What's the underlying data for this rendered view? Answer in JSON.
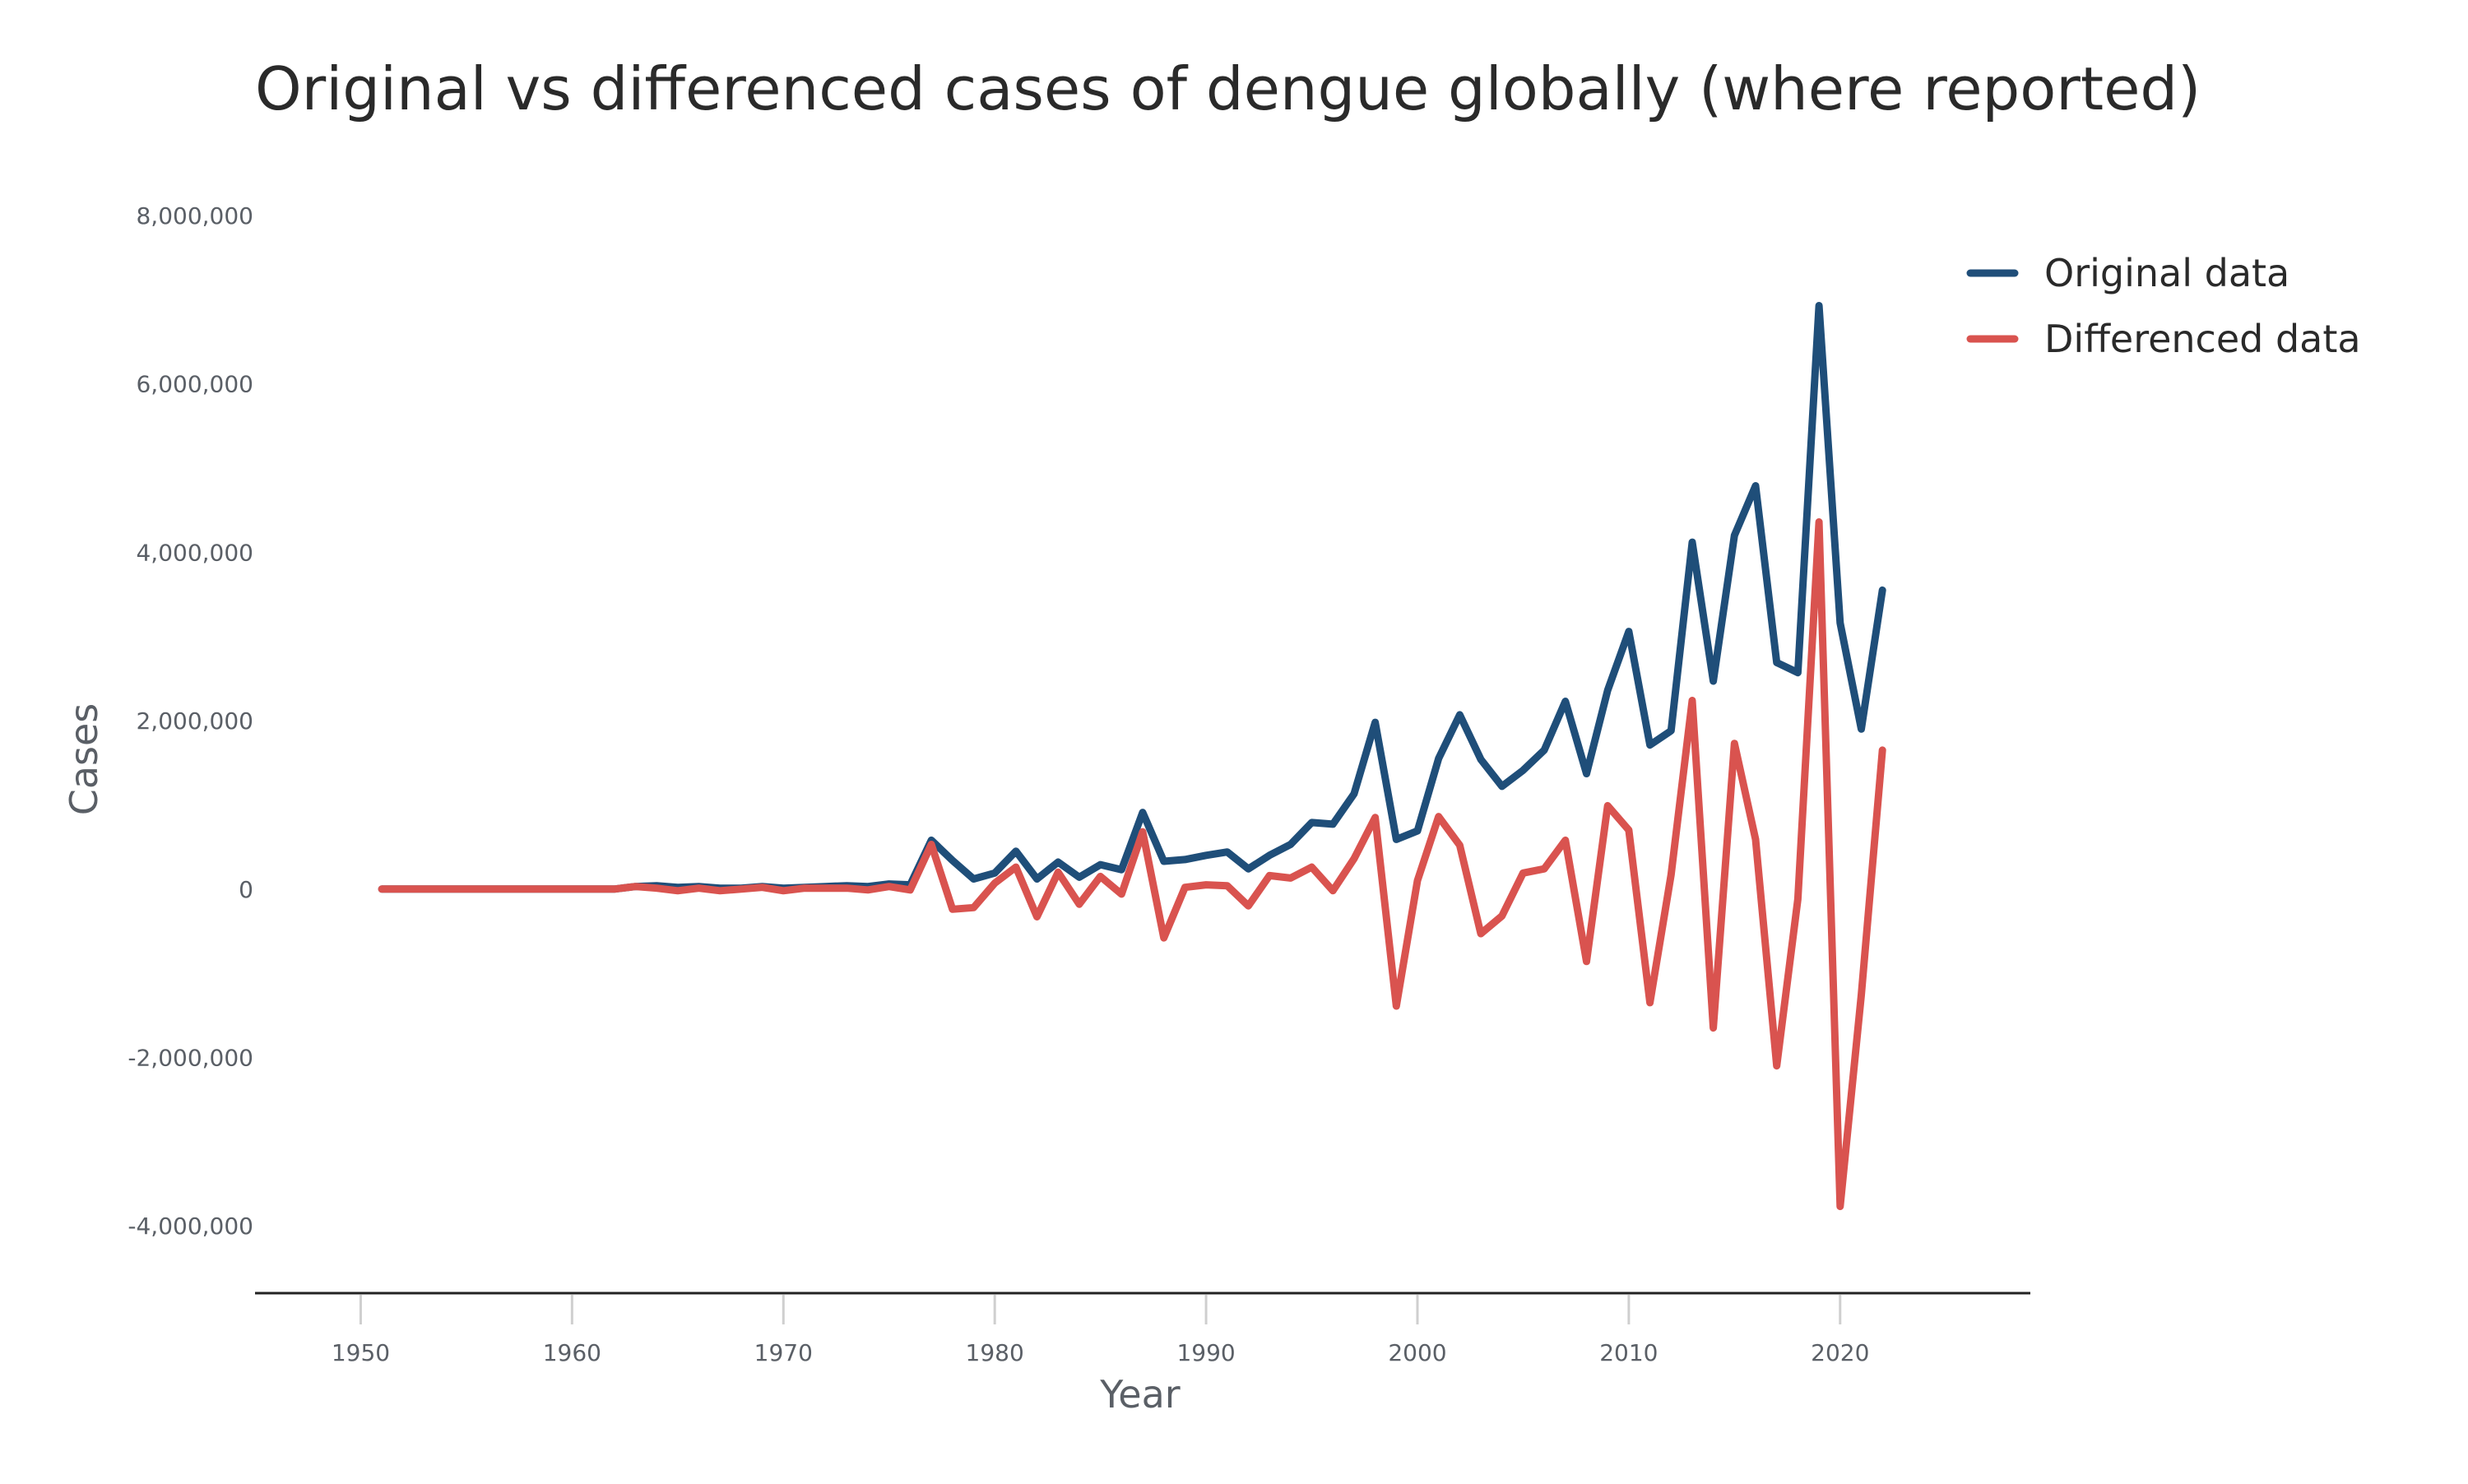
{
  "chart_data": {
    "type": "line",
    "title": "Original vs differenced cases of dengue globally (where reported)",
    "xlabel": "Year",
    "ylabel": "Cases",
    "xlim": [
      1945,
      2029
    ],
    "ylim": [
      -4800000,
      8000000
    ],
    "x_ticks": [
      1950,
      1960,
      1970,
      1980,
      1990,
      2000,
      2010,
      2020
    ],
    "x_tick_labels": [
      "1950",
      "1960",
      "1970",
      "1980",
      "1990",
      "2000",
      "2010",
      "2020"
    ],
    "y_ticks": [
      8000000,
      6000000,
      4000000,
      2000000,
      0,
      -2000000,
      -4000000
    ],
    "y_tick_labels": [
      "8,000,000",
      "6,000,000",
      "4,000,000",
      "2,000,000",
      "0",
      "-2,000,000",
      "-4,000,000"
    ],
    "grid": false,
    "legend_position": "top-right",
    "x": [
      1951,
      1952,
      1953,
      1954,
      1955,
      1956,
      1957,
      1958,
      1959,
      1960,
      1961,
      1962,
      1963,
      1964,
      1965,
      1966,
      1967,
      1968,
      1969,
      1970,
      1971,
      1972,
      1973,
      1974,
      1975,
      1976,
      1977,
      1978,
      1979,
      1980,
      1981,
      1982,
      1983,
      1984,
      1985,
      1986,
      1987,
      1988,
      1989,
      1990,
      1991,
      1992,
      1993,
      1994,
      1995,
      1996,
      1997,
      1998,
      1999,
      2000,
      2001,
      2002,
      2003,
      2004,
      2005,
      2006,
      2007,
      2008,
      2009,
      2010,
      2011,
      2012,
      2013,
      2014,
      2015,
      2016,
      2017,
      2018,
      2019,
      2020,
      2021,
      2022
    ],
    "series": [
      {
        "name": "Original data",
        "color": "#1f4e79",
        "values": [
          0,
          0,
          0,
          0,
          0,
          0,
          0,
          0,
          0,
          0,
          0,
          0,
          30000,
          40000,
          20000,
          30000,
          10000,
          10000,
          30000,
          10000,
          20000,
          30000,
          40000,
          30000,
          60000,
          50000,
          580000,
          340000,
          120000,
          190000,
          450000,
          120000,
          320000,
          140000,
          290000,
          230000,
          910000,
          330000,
          350000,
          400000,
          440000,
          240000,
          400000,
          530000,
          790000,
          770000,
          1130000,
          1980000,
          590000,
          690000,
          1550000,
          2070000,
          1540000,
          1220000,
          1410000,
          1650000,
          2230000,
          1370000,
          2360000,
          3060000,
          1710000,
          1880000,
          4120000,
          2470000,
          4200000,
          4790000,
          2690000,
          2570000,
          6930000,
          3160000,
          1900000,
          3550000
        ]
      },
      {
        "name": "Differenced data",
        "color": "#d9534f",
        "values": [
          0,
          0,
          0,
          0,
          0,
          0,
          0,
          0,
          0,
          0,
          0,
          0,
          30000,
          10000,
          -20000,
          10000,
          -20000,
          0,
          20000,
          -20000,
          10000,
          10000,
          10000,
          -10000,
          30000,
          -10000,
          530000,
          -240000,
          -220000,
          70000,
          260000,
          -330000,
          200000,
          -180000,
          150000,
          -60000,
          680000,
          -580000,
          20000,
          50000,
          40000,
          -200000,
          160000,
          130000,
          260000,
          -20000,
          360000,
          850000,
          -1390000,
          100000,
          860000,
          520000,
          -530000,
          -320000,
          190000,
          240000,
          580000,
          -860000,
          990000,
          700000,
          -1350000,
          170000,
          2240000,
          -1650000,
          1730000,
          590000,
          -2100000,
          -120000,
          4360000,
          -3770000,
          -1260000,
          1650000
        ]
      }
    ]
  }
}
